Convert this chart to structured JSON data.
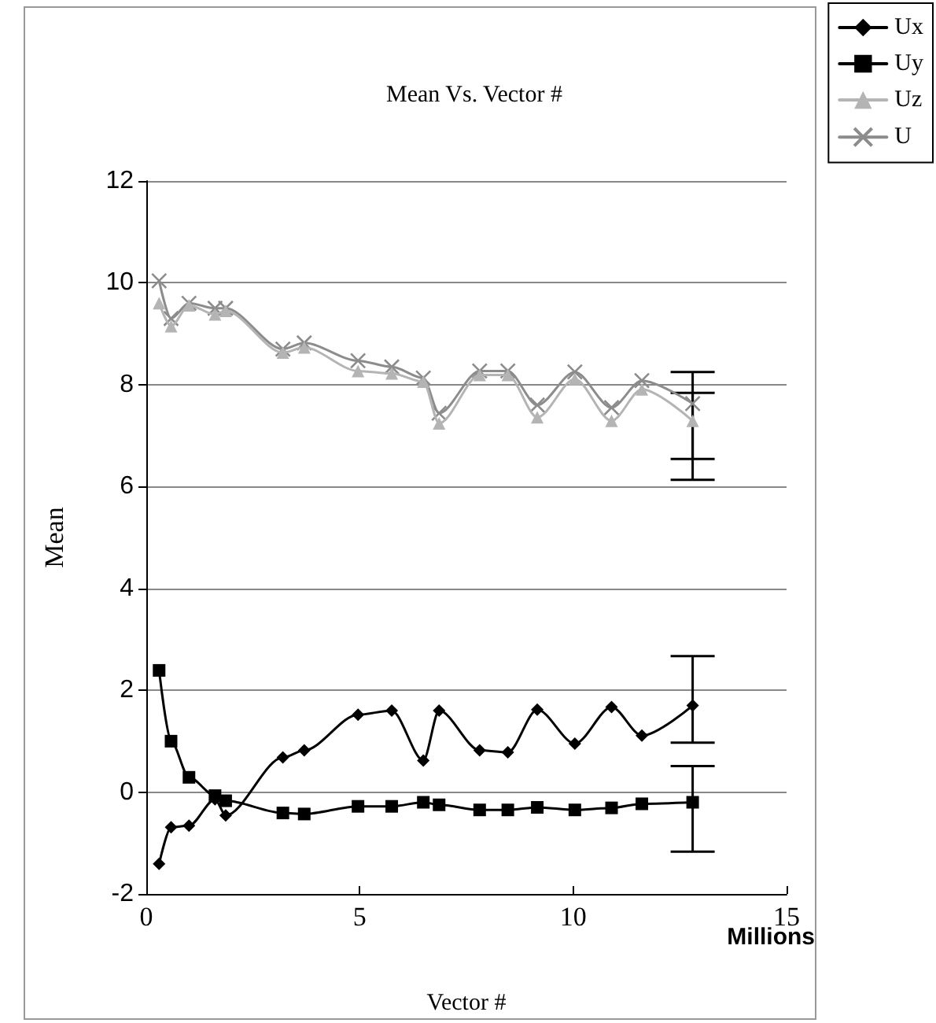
{
  "chart_data": {
    "type": "line",
    "title": "Mean Vs. Vector #",
    "xlabel": "Vector #",
    "ylabel": "Mean",
    "annotations": [
      "Millions"
    ],
    "x": [
      0.3,
      0.58,
      1.0,
      1.61,
      1.86,
      3.2,
      3.7,
      4.96,
      5.75,
      6.49,
      6.86,
      7.81,
      8.47,
      9.16,
      10.04,
      10.9,
      11.61,
      12.8
    ],
    "series": [
      {
        "name": "Ux",
        "color": "#000000",
        "marker": "diamond",
        "values": [
          -1.41,
          -0.69,
          -0.66,
          -0.14,
          -0.46,
          0.68,
          0.82,
          1.52,
          1.6,
          0.62,
          1.6,
          0.82,
          0.78,
          1.62,
          0.95,
          1.67,
          1.11,
          1.7
        ],
        "errors": [
          null,
          null,
          null,
          null,
          null,
          null,
          null,
          null,
          null,
          null,
          null,
          null,
          null,
          null,
          null,
          null,
          null,
          [
            0.97,
            2.67
          ]
        ]
      },
      {
        "name": "Uy",
        "color": "#000000",
        "marker": "square",
        "values": [
          2.39,
          1.0,
          0.29,
          -0.07,
          -0.17,
          -0.41,
          -0.43,
          -0.28,
          -0.28,
          -0.2,
          -0.25,
          -0.35,
          -0.35,
          -0.3,
          -0.35,
          -0.31,
          -0.23,
          -0.2
        ],
        "errors": [
          null,
          null,
          null,
          null,
          null,
          null,
          null,
          null,
          null,
          null,
          null,
          null,
          null,
          null,
          null,
          null,
          null,
          [
            -1.17,
            0.51
          ]
        ]
      },
      {
        "name": "Uz",
        "color": "#b4b4b4",
        "marker": "triangle",
        "values": [
          9.6,
          9.15,
          9.56,
          9.38,
          9.45,
          8.63,
          8.73,
          8.27,
          8.22,
          8.06,
          7.24,
          8.19,
          8.19,
          7.36,
          8.11,
          7.29,
          7.91,
          7.29
        ],
        "errors": [
          null,
          null,
          null,
          null,
          null,
          null,
          null,
          null,
          null,
          null,
          null,
          null,
          null,
          null,
          null,
          null,
          null,
          [
            6.54,
            7.84
          ]
        ]
      },
      {
        "name": "U",
        "color": "#8c8c8c",
        "marker": "cross",
        "values": [
          10.04,
          9.3,
          9.6,
          9.5,
          9.5,
          8.7,
          8.82,
          8.47,
          8.35,
          8.13,
          7.44,
          8.27,
          8.27,
          7.6,
          8.25,
          7.55,
          8.08,
          7.63
        ],
        "errors": [
          null,
          null,
          null,
          null,
          null,
          null,
          null,
          null,
          null,
          null,
          null,
          null,
          null,
          null,
          null,
          null,
          null,
          [
            6.13,
            8.25
          ]
        ]
      }
    ],
    "xlim": [
      0,
      15
    ],
    "xticks": [
      0,
      5,
      10,
      15
    ],
    "ylim": [
      -2,
      12
    ],
    "yticks": [
      -2,
      0,
      2,
      4,
      6,
      8,
      10,
      12
    ],
    "grid": "y",
    "legend": "top right",
    "line_style": "solid"
  }
}
